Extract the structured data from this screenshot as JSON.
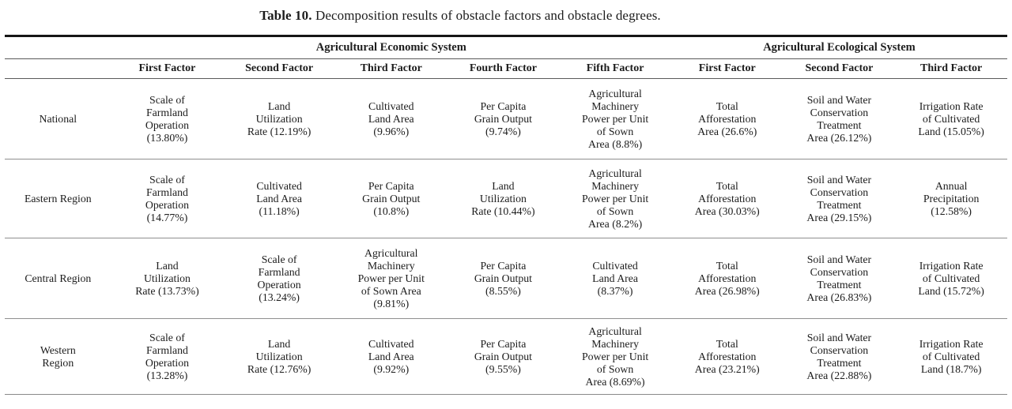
{
  "page": {
    "title_label": "Table 10.",
    "title_text": " Decomposition results of obstacle factors and obstacle degrees."
  },
  "table": {
    "group_headers": [
      {
        "label": "",
        "span": 1
      },
      {
        "label": "Agricultural Economic System",
        "span": 5
      },
      {
        "label": "Agricultural Ecological System",
        "span": 3
      }
    ],
    "column_headers": [
      "",
      "First Factor",
      "Second Factor",
      "Third Factor",
      "Fourth Factor",
      "Fifth Factor",
      "First Factor",
      "Second Factor",
      "Third Factor"
    ],
    "rows": [
      {
        "region": "National",
        "cells": [
          "Scale of\nFarmland\nOperation\n(13.80%)",
          "Land\nUtilization\nRate (12.19%)",
          "Cultivated\nLand Area\n(9.96%)",
          "Per Capita\nGrain Output\n(9.74%)",
          "Agricultural\nMachinery\nPower per Unit\nof Sown\nArea (8.8%)",
          "Total\nAfforestation\nArea (26.6%)",
          "Soil and Water\nConservation\nTreatment\nArea (26.12%)",
          "Irrigation Rate\nof Cultivated\nLand (15.05%)"
        ]
      },
      {
        "region": "Eastern Region",
        "cells": [
          "Scale of\nFarmland\nOperation\n(14.77%)",
          "Cultivated\nLand Area\n(11.18%)",
          "Per Capita\nGrain Output\n(10.8%)",
          "Land\nUtilization\nRate (10.44%)",
          "Agricultural\nMachinery\nPower per Unit\nof Sown\nArea (8.2%)",
          "Total\nAfforestation\nArea (30.03%)",
          "Soil and Water\nConservation\nTreatment\nArea (29.15%)",
          "Annual\nPrecipitation\n(12.58%)"
        ]
      },
      {
        "region": "Central Region",
        "cells": [
          "Land\nUtilization\nRate (13.73%)",
          "Scale of\nFarmland\nOperation\n(13.24%)",
          "Agricultural\nMachinery\nPower per Unit\nof Sown Area\n(9.81%)",
          "Per Capita\nGrain Output\n(8.55%)",
          "Cultivated\nLand Area\n(8.37%)",
          "Total\nAfforestation\nArea (26.98%)",
          "Soil and Water\nConservation\nTreatment\nArea (26.83%)",
          "Irrigation Rate\nof Cultivated\nLand (15.72%)"
        ]
      },
      {
        "region": "Western\nRegion",
        "cells": [
          "Scale of\nFarmland\nOperation\n(13.28%)",
          "Land\nUtilization\nRate (12.76%)",
          "Cultivated\nLand Area\n(9.92%)",
          "Per Capita\nGrain Output\n(9.55%)",
          "Agricultural\nMachinery\nPower per Unit\nof Sown\nArea (8.69%)",
          "Total\nAfforestation\nArea (23.21%)",
          "Soil and Water\nConservation\nTreatment\nArea (22.88%)",
          "Irrigation Rate\nof Cultivated\nLand (18.7%)"
        ]
      }
    ]
  }
}
